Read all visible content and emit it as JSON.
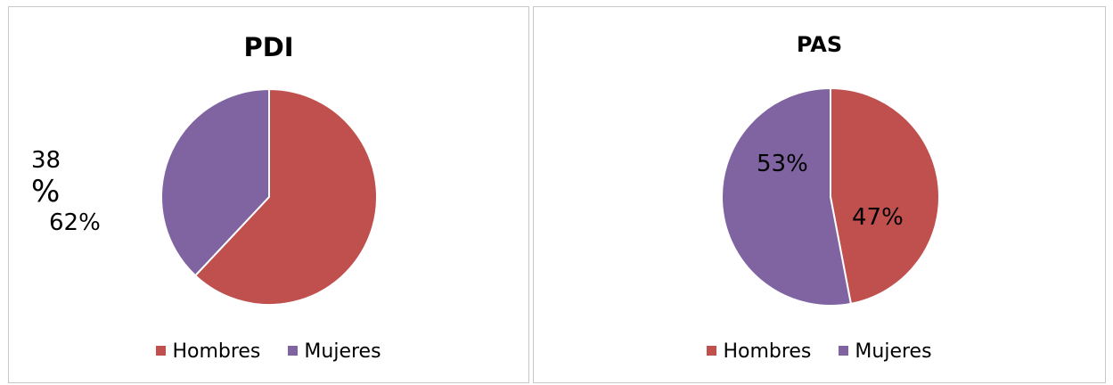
{
  "colors": {
    "hombres": "#C0504D",
    "mujeres": "#8064A2"
  },
  "chart_data": [
    {
      "type": "pie",
      "title": "PDI",
      "categories": [
        "Hombres",
        "Mujeres"
      ],
      "values": [
        62,
        38
      ],
      "data_labels": [
        "62%",
        "38\n%"
      ],
      "legend": [
        "Hombres",
        "Mujeres"
      ],
      "legend_position": "bottom"
    },
    {
      "type": "pie",
      "title": "PAS",
      "categories": [
        "Hombres",
        "Mujeres"
      ],
      "values": [
        47,
        53
      ],
      "data_labels": [
        "47%",
        "53%"
      ],
      "legend": [
        "Hombres",
        "Mujeres"
      ],
      "legend_position": "bottom"
    }
  ]
}
